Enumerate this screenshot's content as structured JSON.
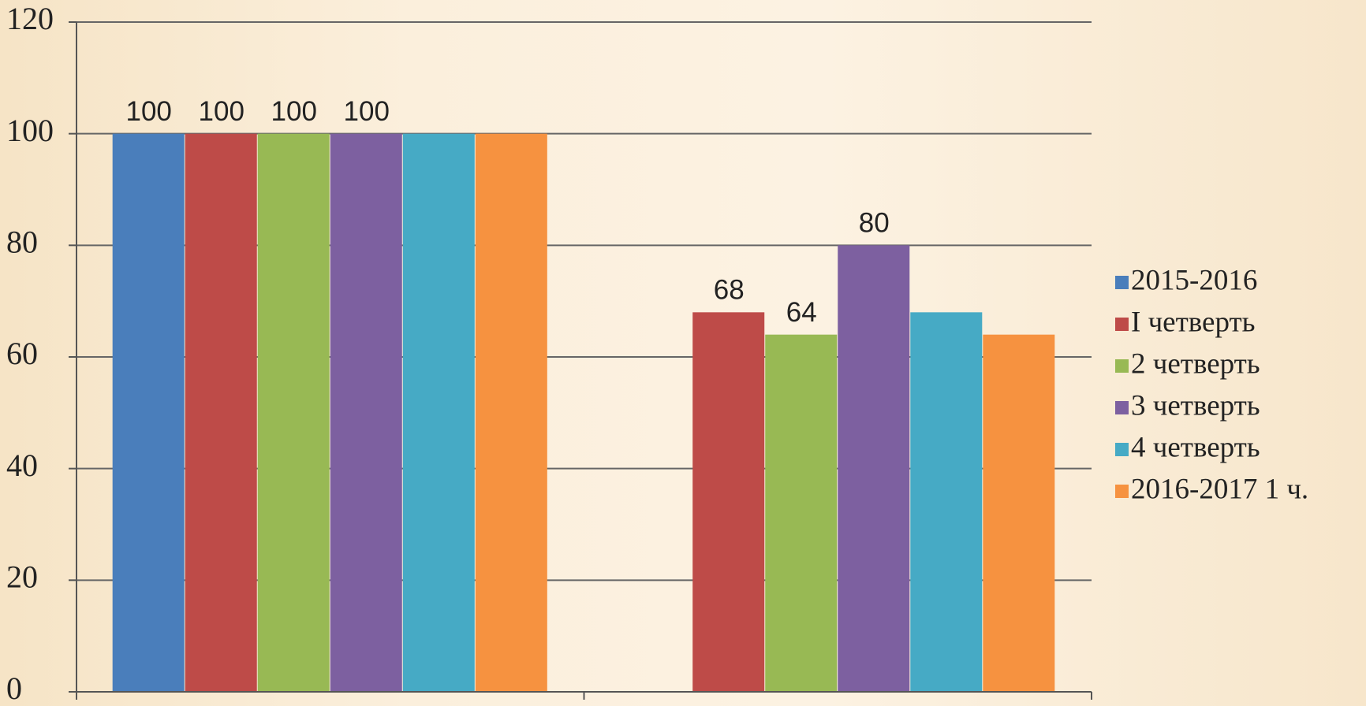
{
  "chart_data": {
    "type": "bar",
    "categories": [
      null,
      null
    ],
    "series": [
      {
        "name": "2015-2016",
        "color": "#4a7ebb",
        "values": [
          100,
          null
        ],
        "data_labels": true
      },
      {
        "name": "I четверть",
        "color": "#be4b48",
        "values": [
          100,
          68
        ],
        "data_labels": true
      },
      {
        "name": "2 четверть",
        "color": "#98b954",
        "values": [
          100,
          64
        ],
        "data_labels": true
      },
      {
        "name": "3 четверть",
        "color": "#7d60a0",
        "values": [
          100,
          80
        ],
        "data_labels": true
      },
      {
        "name": "4 четверть",
        "color": "#46aac5",
        "values": [
          100,
          68
        ],
        "data_labels": false
      },
      {
        "name": "2016-2017 1 ч.",
        "color": "#f69240",
        "values": [
          100,
          64
        ],
        "data_labels": false
      }
    ],
    "ylim": [
      0,
      120
    ],
    "yticks": [
      0,
      20,
      40,
      60,
      80,
      100,
      120
    ],
    "grid": true,
    "legend": "right"
  }
}
